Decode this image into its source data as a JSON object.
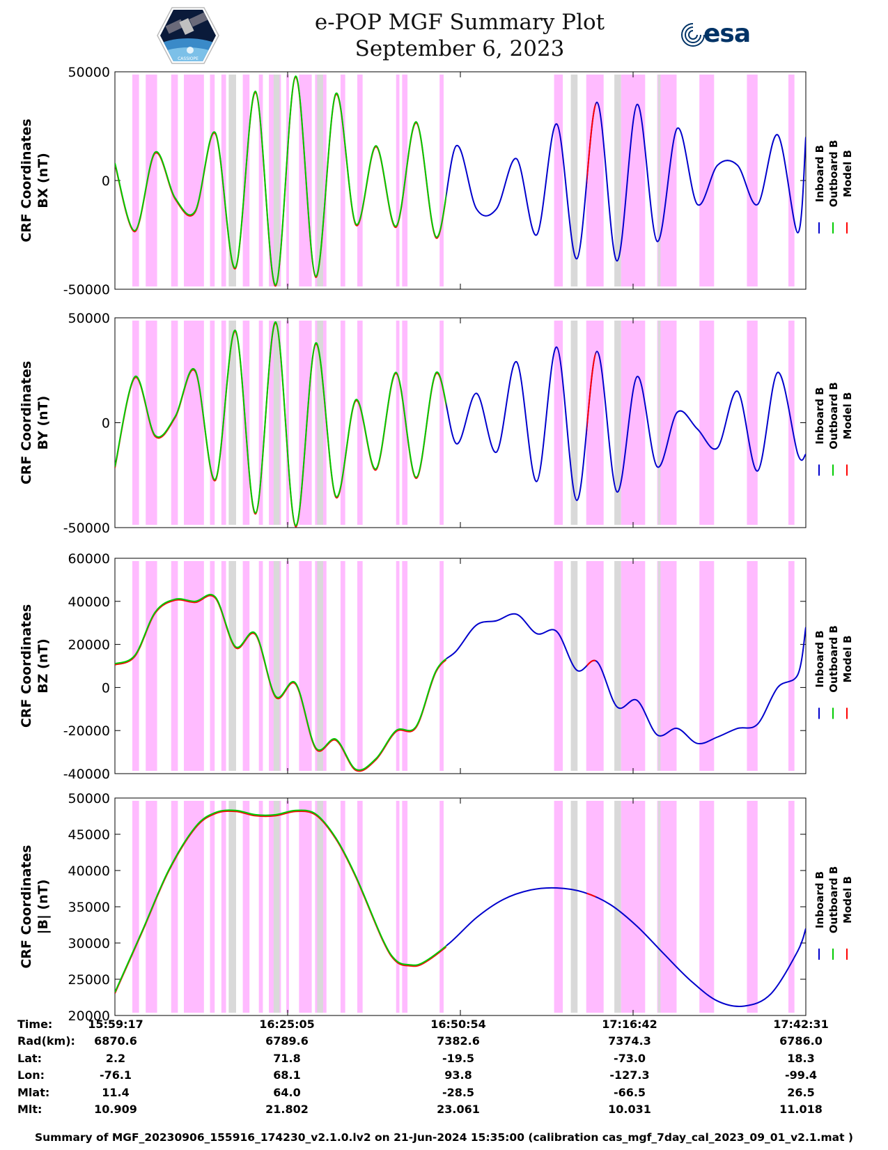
{
  "header": {
    "title_line1": "e-POP MGF Summary Plot",
    "title_line2": "September 6, 2023",
    "left_logo_caption": "CASSIOPE",
    "right_logo_text": "esa"
  },
  "colors": {
    "inboard": "#0000cc",
    "outboard": "#00cc00",
    "model": "#ff0000",
    "pink_band": "#ffbbff",
    "gray_band": "#d9d9d9"
  },
  "chart_data": [
    {
      "type": "line",
      "ylabel_line1": "CRF Coordinates",
      "ylabel_line2": "BX (nT)",
      "ylim": [
        -50000,
        50000
      ],
      "yticks": [
        "50000",
        "0",
        "-50000"
      ],
      "legend": [
        "Inboard B",
        "Outboard B",
        "Model B"
      ],
      "x_minutes": [
        0,
        3,
        6,
        9,
        12,
        15,
        18,
        21,
        24,
        27,
        30,
        33,
        36,
        39,
        42,
        45,
        48,
        51,
        54,
        57,
        60,
        63,
        66,
        69,
        72,
        75,
        78,
        81,
        84,
        87,
        90,
        93,
        96,
        99,
        102,
        103.2
      ],
      "values": [
        8000,
        -23000,
        13000,
        -8000,
        -14000,
        22000,
        -40000,
        41000,
        -48000,
        48000,
        -44000,
        40000,
        -20000,
        16000,
        -21000,
        27000,
        -26000,
        16000,
        -13000,
        -13000,
        10000,
        -25000,
        26000,
        -36000,
        36000,
        -37000,
        35000,
        -28000,
        24000,
        -11000,
        7000,
        7000,
        -11000,
        21000,
        -24000,
        20000
      ]
    },
    {
      "type": "line",
      "ylabel_line1": "CRF Coordinates",
      "ylabel_line2": "BY (nT)",
      "ylim": [
        -50000,
        50000
      ],
      "yticks": [
        "50000",
        "0",
        "-50000"
      ],
      "legend": [
        "Inboard B",
        "Outboard B",
        "Model B"
      ],
      "x_minutes": [
        0,
        3,
        6,
        9,
        12,
        15,
        18,
        21,
        24,
        27,
        30,
        33,
        36,
        39,
        42,
        45,
        48,
        51,
        54,
        57,
        60,
        63,
        66,
        69,
        72,
        75,
        78,
        81,
        84,
        87,
        90,
        93,
        96,
        99,
        102,
        103.2
      ],
      "values": [
        -21000,
        22000,
        -6000,
        3000,
        25000,
        -27000,
        44000,
        -43000,
        48000,
        -49000,
        38000,
        -35000,
        11000,
        -22000,
        24000,
        -26000,
        24000,
        -10000,
        14000,
        -14000,
        29000,
        -28000,
        36000,
        -37000,
        34000,
        -33000,
        22000,
        -21000,
        5000,
        -3000,
        -12000,
        15000,
        -23000,
        24000,
        -15000,
        -15000
      ]
    },
    {
      "type": "line",
      "ylabel_line1": "CRF Coordinates",
      "ylabel_line2": "BZ (nT)",
      "ylim": [
        -40000,
        60000
      ],
      "yticks": [
        "60000",
        "40000",
        "20000",
        "0",
        "-20000",
        "-40000"
      ],
      "legend": [
        "Inboard B",
        "Outboard B",
        "Model B"
      ],
      "x_minutes": [
        0,
        3,
        6,
        9,
        12,
        15,
        18,
        21,
        24,
        27,
        30,
        33,
        36,
        39,
        42,
        45,
        48,
        51,
        54,
        57,
        60,
        63,
        66,
        69,
        72,
        75,
        78,
        81,
        84,
        87,
        90,
        93,
        96,
        99,
        102,
        103.2
      ],
      "values": [
        11000,
        15000,
        35000,
        41000,
        40000,
        42000,
        19000,
        25000,
        -4000,
        2000,
        -28000,
        -24000,
        -38000,
        -33000,
        -20000,
        -18000,
        8000,
        17000,
        29000,
        31000,
        34000,
        25000,
        26000,
        8000,
        12000,
        -9000,
        -6000,
        -22000,
        -19000,
        -26000,
        -23000,
        -19000,
        -17000,
        0,
        6000,
        28000
      ]
    },
    {
      "type": "line",
      "ylabel_line1": "CRF Coordinates",
      "ylabel_line2": "|B| (nT)",
      "ylim": [
        20000,
        50000
      ],
      "yticks": [
        "50000",
        "45000",
        "40000",
        "35000",
        "30000",
        "25000",
        "20000"
      ],
      "legend": [
        "Inboard B",
        "Outboard B",
        "Model B"
      ],
      "x_minutes": [
        0,
        4,
        8,
        12,
        15,
        18,
        21,
        24,
        27,
        30,
        33,
        36,
        40,
        42,
        44,
        46,
        50,
        54,
        58,
        62,
        66,
        70,
        74,
        78,
        82,
        86,
        90,
        94,
        98,
        102,
        103.2
      ],
      "values": [
        23200,
        31500,
        40000,
        46000,
        48000,
        48300,
        47700,
        47700,
        48300,
        47800,
        44500,
        39200,
        30500,
        27600,
        27000,
        27300,
        30000,
        33500,
        36000,
        37300,
        37600,
        37000,
        35300,
        32300,
        28500,
        24800,
        22000,
        21300,
        23000,
        28900,
        32000
      ]
    }
  ],
  "x_axis": {
    "start_minutes_after": "15:59:17",
    "end_minutes": 103.2,
    "tick_minutes": [
      0,
      25.8,
      51.6,
      77.4,
      103.2
    ]
  },
  "pink_bands_minutes": [
    [
      2.6,
      3.6
    ],
    [
      4.6,
      6.3
    ],
    [
      8.4,
      9.4
    ],
    [
      10.3,
      13.3
    ],
    [
      14.2,
      14.9
    ],
    [
      15.9,
      16.6
    ],
    [
      17.4,
      18.0
    ],
    [
      19.1,
      20.1
    ],
    [
      21.5,
      22.1
    ],
    [
      23.0,
      24.8
    ],
    [
      25.6,
      26.0
    ],
    [
      27.5,
      29.4
    ],
    [
      29.9,
      31.6
    ],
    [
      33.7,
      34.4
    ],
    [
      36.2,
      37.0
    ],
    [
      42.0,
      42.5
    ],
    [
      42.9,
      43.7
    ],
    [
      48.5,
      49.1
    ],
    [
      65.6,
      66.9
    ],
    [
      70.4,
      73.0
    ],
    [
      75.6,
      79.2
    ],
    [
      81.0,
      83.9
    ],
    [
      87.3,
      89.5
    ],
    [
      94.4,
      96.0
    ],
    [
      100.6,
      101.5
    ]
  ],
  "gray_bands_minutes": [
    [
      17.0,
      18.1
    ],
    [
      23.7,
      24.6
    ],
    [
      30.2,
      31.1
    ],
    [
      68.1,
      69.1
    ],
    [
      74.6,
      75.6
    ],
    [
      81.1,
      81.5
    ]
  ],
  "red_segment_minutes": [
    70.5,
    71.8
  ],
  "ephemeris": {
    "labels": [
      "Time:",
      "Rad(km):",
      "Lat:",
      "Lon:",
      "Mlat:",
      "Mlt:"
    ],
    "columns": [
      [
        "15:59:17",
        "6870.6",
        "2.2",
        "-76.1",
        "11.4",
        "10.909"
      ],
      [
        "16:25:05",
        "6789.6",
        "71.8",
        "68.1",
        "64.0",
        "21.802"
      ],
      [
        "16:50:54",
        "7382.6",
        "-19.5",
        "93.8",
        "-28.5",
        "23.061"
      ],
      [
        "17:16:42",
        "7374.3",
        "-73.0",
        "-127.3",
        "-66.5",
        "10.031"
      ],
      [
        "17:42:31",
        "6786.0",
        "18.3",
        "-99.4",
        "26.5",
        "11.018"
      ]
    ]
  },
  "footer": {
    "text": "Summary of MGF_20230906_155916_174230_v2.1.0.lv2 on 21-Jun-2024 15:35:00 (calibration cas_mgf_7day_cal_2023_09_01_v2.1.mat )"
  }
}
